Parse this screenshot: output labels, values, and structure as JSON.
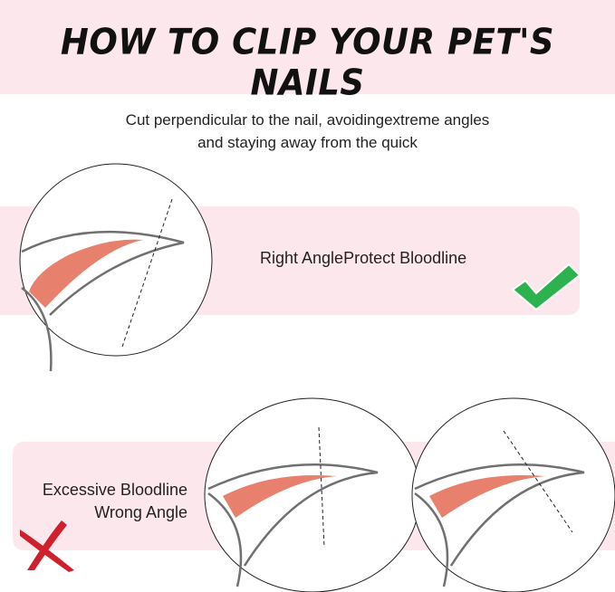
{
  "header": {
    "title": "HOW TO CLIP YOUR PET'S NAILS"
  },
  "subtitle": {
    "line1": "Cut perpendicular to the nail, avoidingextreme angles",
    "line2": "and staying away from the quick"
  },
  "correct": {
    "label": "Right AngleProtect Bloodline",
    "icon": "check-icon",
    "icon_color": "#2db24f"
  },
  "wrong": {
    "line1": "Excessive Bloodline",
    "line2": "Wrong Angle",
    "icon": "x-mark-icon",
    "icon_color": "#d0202e"
  },
  "colors": {
    "band": "#fce8ec",
    "quick": "#e8806e",
    "outline": "#707070"
  }
}
